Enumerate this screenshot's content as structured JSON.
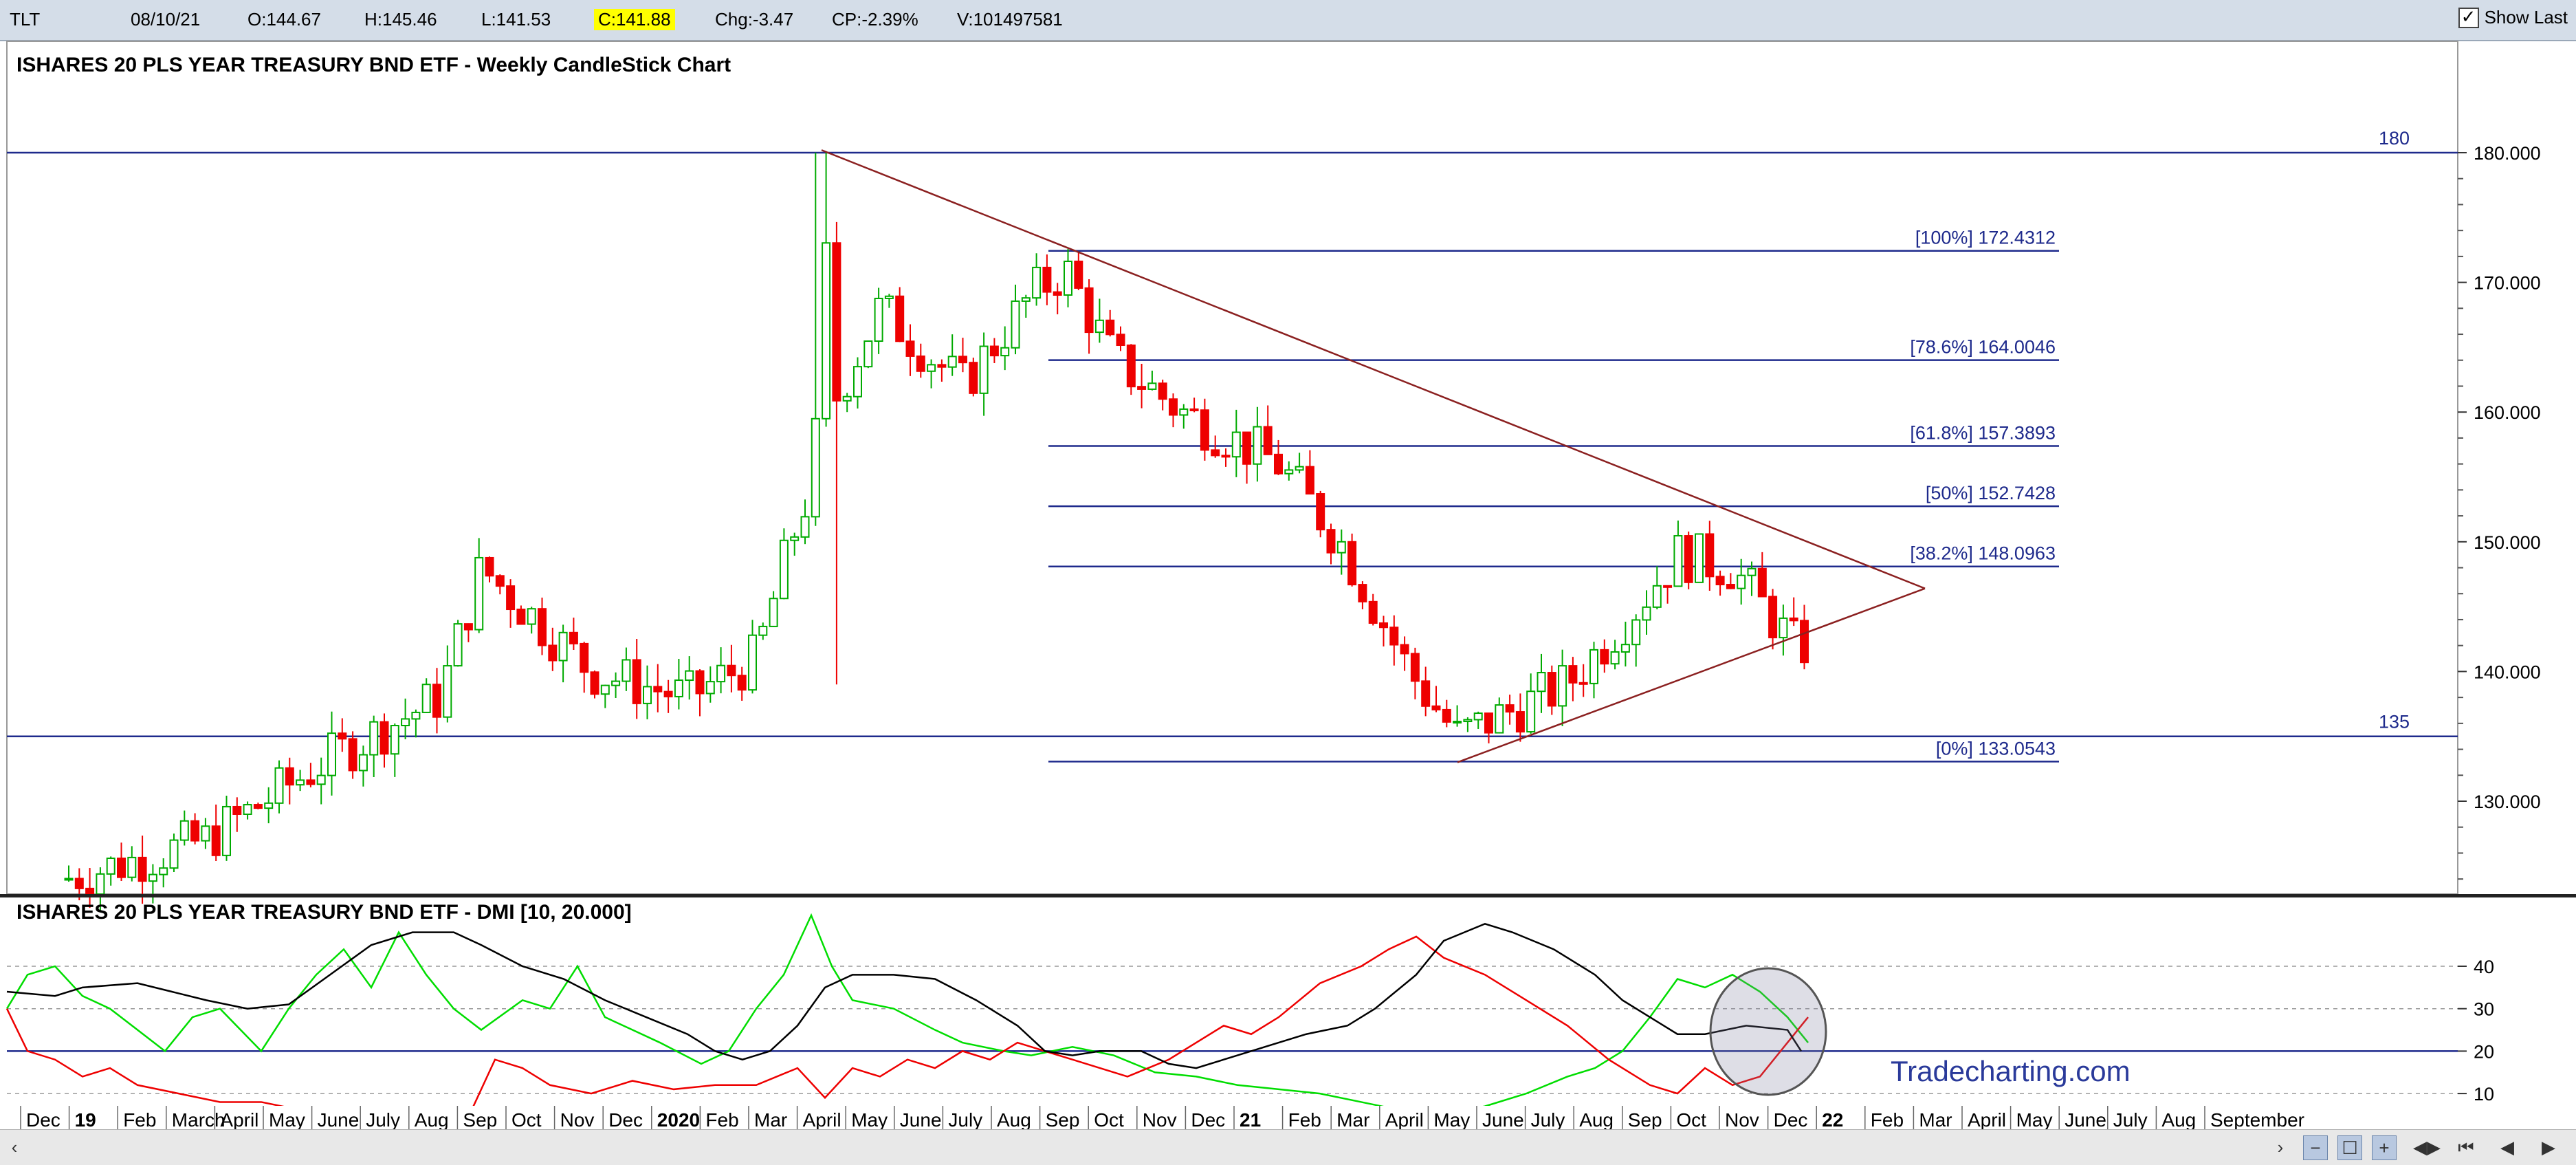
{
  "topbar": {
    "symbol": "TLT",
    "date": "08/10/21",
    "open": "O:144.67",
    "high": "H:145.46",
    "low": "L:141.53",
    "close": "C:141.88",
    "change": "Chg:-3.47",
    "change_pct": "CP:-2.39%",
    "volume": "V:101497581",
    "show_last_label": "Show Last",
    "show_last_checked": true
  },
  "main_chart": {
    "title": "ISHARES 20 PLS YEAR TREASURY BND ETF - Weekly CandleStick Chart",
    "y_ticks": [
      "180.000",
      "170.000",
      "160.000",
      "150.000",
      "140.000",
      "130.000"
    ],
    "hlines": [
      {
        "label": "180",
        "value": 180
      },
      {
        "label": "135",
        "value": 135
      }
    ],
    "fib_levels": [
      {
        "label": "[100%] 172.4312",
        "value": 172.4312
      },
      {
        "label": "[78.6%] 164.0046",
        "value": 164.0046
      },
      {
        "label": "[61.8%] 157.3893",
        "value": 157.3893
      },
      {
        "label": "[50%] 152.7428",
        "value": 152.7428
      },
      {
        "label": "[38.2%] 148.0963",
        "value": 148.0963
      },
      {
        "label": "[0%] 133.0543",
        "value": 133.0543
      }
    ],
    "colors": {
      "up": "#00aa00",
      "down": "#ee0000",
      "line": "#1e2a8c",
      "trend": "#8b2020"
    }
  },
  "dmi_chart": {
    "title": "ISHARES 20 PLS YEAR TREASURY BND ETF - DMI [10, 20.000]",
    "y_ticks": [
      "40",
      "30",
      "20",
      "10"
    ],
    "watermark": "Tradecharting.com",
    "colors": {
      "plus_di": "#00dd00",
      "minus_di": "#ee0000",
      "adx": "#000000",
      "reference": "#1e2a8c"
    }
  },
  "x_axis": {
    "labels": [
      "Dec",
      "19",
      "Feb",
      "March",
      "April",
      "May",
      "June",
      "July",
      "Aug",
      "Sep",
      "Oct",
      "Nov",
      "Dec",
      "2020",
      "Feb",
      "Mar",
      "April",
      "May",
      "June",
      "July",
      "Aug",
      "Sep",
      "Oct",
      "Nov",
      "Dec",
      "21",
      "Feb",
      "Mar",
      "April",
      "May",
      "June",
      "July",
      "Aug",
      "Sep",
      "Oct",
      "Nov",
      "Dec",
      "22",
      "Feb",
      "Mar",
      "April",
      "May",
      "June",
      "July",
      "Aug",
      "September"
    ],
    "bold": [
      "19",
      "2020",
      "21",
      "22"
    ]
  },
  "navigation": {
    "buttons": [
      "scroll-left",
      "scroll-right",
      "zoom-out",
      "zoom-reset",
      "zoom-in",
      "fit",
      "first",
      "previous",
      "next"
    ]
  }
}
